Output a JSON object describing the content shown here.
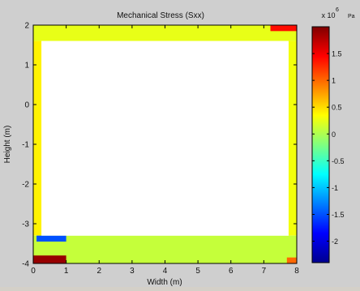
{
  "chart_data": {
    "type": "heatmap",
    "title": "Mechanical Stress  (Sxx)",
    "xlabel": "Width (m)",
    "ylabel": "Height (m)",
    "xlim": [
      0,
      8
    ],
    "ylim": [
      -4,
      2
    ],
    "x_ticks": [
      "0",
      "1",
      "2",
      "3",
      "4",
      "5",
      "6",
      "7",
      "8"
    ],
    "y_ticks": [
      "2",
      "1",
      "0",
      "-1",
      "-2",
      "-3",
      "-4"
    ],
    "colorbar": {
      "label": "x 10",
      "exponent": "6",
      "unit": "Pa",
      "range": [
        -2.4,
        2.0
      ],
      "ticks": [
        "1.5",
        "1",
        "0.5",
        "0",
        "-0.5",
        "-1",
        "-1.5",
        "-2"
      ],
      "tick_values": [
        1.5,
        1,
        0.5,
        0,
        -0.5,
        -1,
        -1.5,
        -2
      ],
      "colormap": "jet"
    },
    "domain_regions": [
      {
        "name": "frame-top-band",
        "x": [
          0,
          8
        ],
        "y": [
          1.6,
          2.0
        ],
        "stress_mpa": 0.25
      },
      {
        "name": "frame-left-band",
        "x": [
          0,
          0.25
        ],
        "y": [
          -3.3,
          1.6
        ],
        "stress_mpa": 0.4
      },
      {
        "name": "frame-right-band",
        "x": [
          7.75,
          8
        ],
        "y": [
          -3.3,
          1.6
        ],
        "stress_mpa": 0.3
      },
      {
        "name": "frame-bottom-band",
        "x": [
          0,
          8
        ],
        "y": [
          -4.0,
          -3.3
        ],
        "stress_mpa": 0.1
      },
      {
        "name": "hot-spot-top-right",
        "x": [
          7.2,
          8
        ],
        "y": [
          1.85,
          2.0
        ],
        "stress_mpa": 1.4
      },
      {
        "name": "hot-spot-bottom-left",
        "x": [
          0,
          1.0
        ],
        "y": [
          -4.0,
          -3.8
        ],
        "stress_mpa": 1.9
      },
      {
        "name": "cold-spot-bottom-left-inner",
        "x": [
          0.1,
          1.0
        ],
        "y": [
          -3.45,
          -3.3
        ],
        "stress_mpa": -1.5
      },
      {
        "name": "hot-spot-bottom-right",
        "x": [
          7.7,
          8
        ],
        "y": [
          -4.0,
          -3.85
        ],
        "stress_mpa": 1.0
      }
    ],
    "void_region": {
      "x": [
        0.25,
        7.75
      ],
      "y": [
        -3.3,
        1.6
      ]
    }
  }
}
